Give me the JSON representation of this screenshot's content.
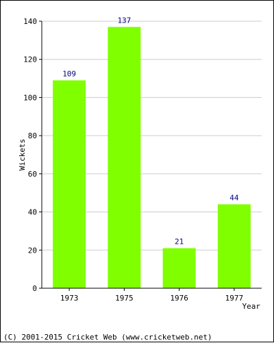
{
  "chart_data": {
    "type": "bar",
    "categories": [
      "1973",
      "1975",
      "1976",
      "1977"
    ],
    "values": [
      109,
      137,
      21,
      44
    ],
    "data_labels": [
      "109",
      "137",
      "21",
      "44"
    ],
    "xlabel": "Year",
    "ylabel": "Wickets",
    "ylim": [
      0,
      140
    ],
    "yticks": [
      0,
      20,
      40,
      60,
      80,
      100,
      120,
      140
    ],
    "grid": true,
    "bar_color": "#80ff00",
    "grid_color": "#cccccc",
    "data_label_color": "#000080"
  },
  "footer": {
    "copyright": "(C) 2001-2015 Cricket Web (www.cricketweb.net)"
  }
}
